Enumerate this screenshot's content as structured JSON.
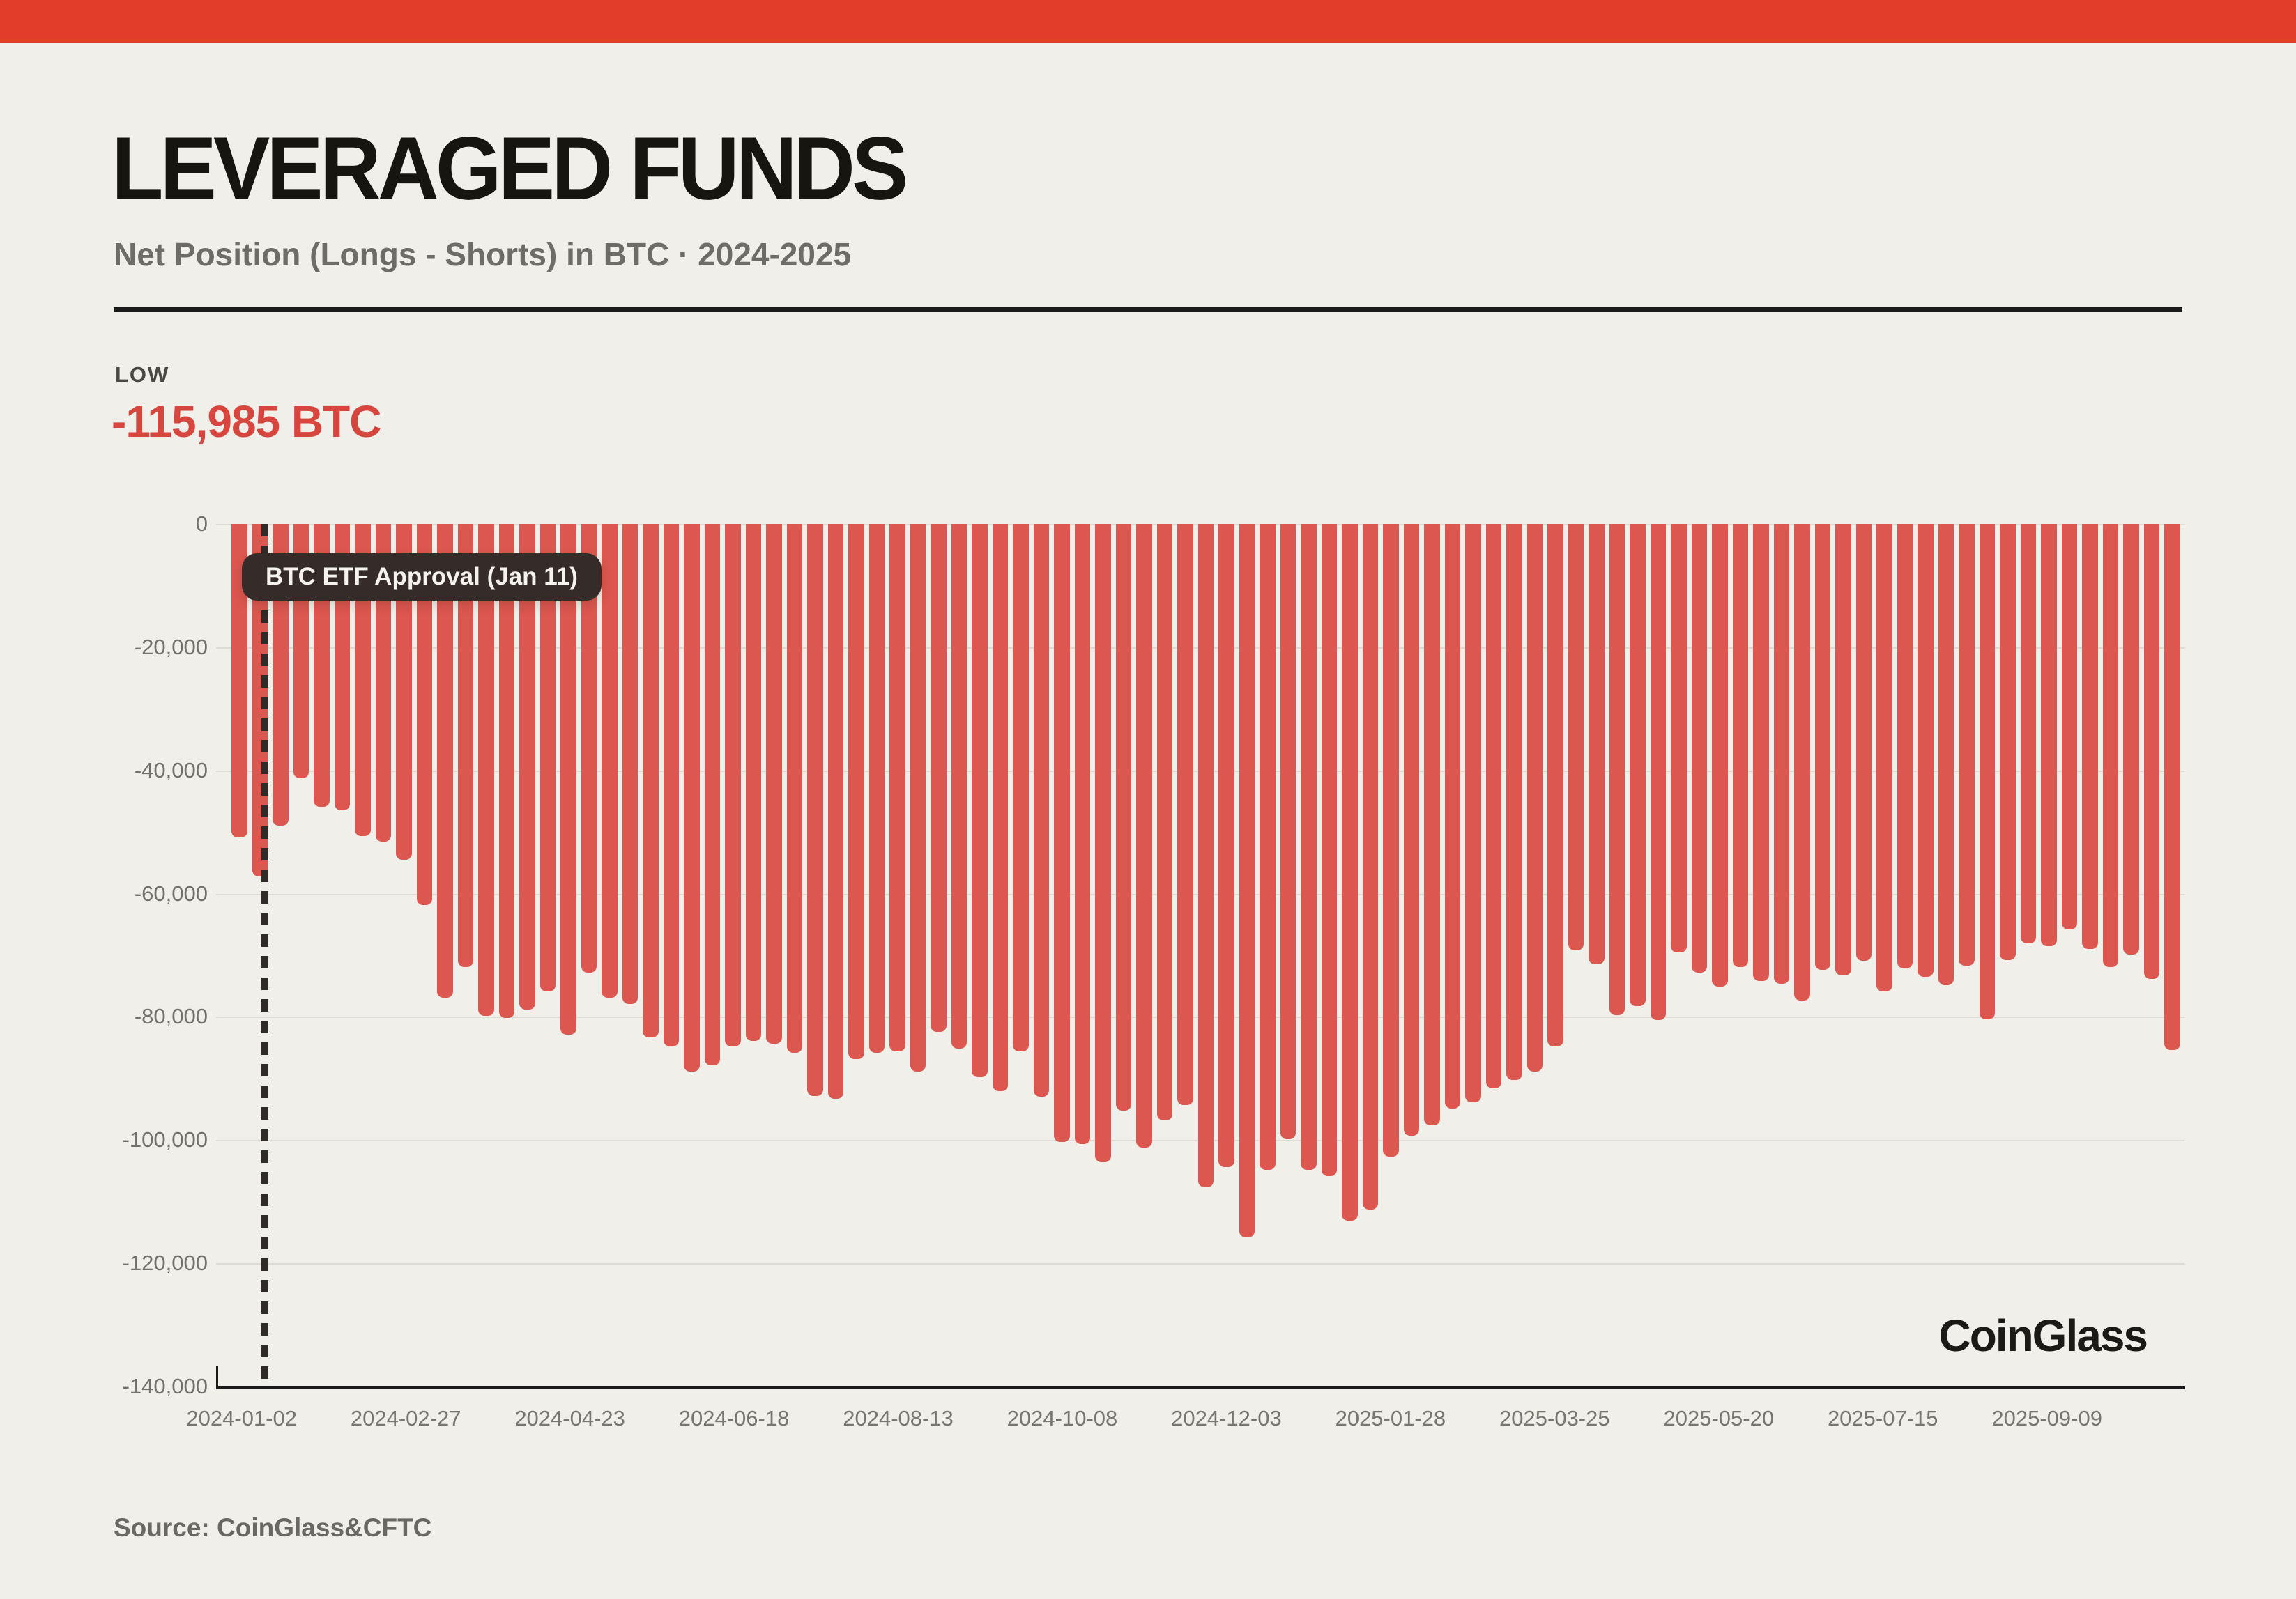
{
  "page": {
    "background_color": "#F0EFE9",
    "accent_bar_color": "#E23C2B"
  },
  "header": {
    "title": "LEVERAGED FUNDS",
    "subtitle": "Net Position (Longs - Shorts) in BTC · 2024-2025"
  },
  "stats": {
    "low_label": "LOW",
    "low_value": "-115,985 BTC",
    "low_color": "#D7463E"
  },
  "annotation": {
    "text": "BTC ETF Approval (Jan 11)"
  },
  "watermark": "CoinGlass",
  "footer": {
    "source": "Source: CoinGlass&CFTC"
  },
  "chart_data": {
    "type": "bar",
    "title": "Leveraged Funds Net Position (Longs - Shorts) in BTC, 2024-2025",
    "xlabel": "",
    "ylabel": "",
    "ylim": [
      -140000,
      0
    ],
    "grid": true,
    "bar_color": "#DC574F",
    "y_tick_labels": [
      "0",
      "-20,000",
      "-40,000",
      "-60,000",
      "-80,000",
      "-100,000",
      "-120,000",
      "-140,000"
    ],
    "x_tick_labels": [
      "2024-01-02",
      "2024-02-27",
      "2024-04-23",
      "2024-06-18",
      "2024-08-13",
      "2024-10-08",
      "2024-12-03",
      "2025-01-28",
      "2025-03-25",
      "2025-05-20",
      "2025-07-15",
      "2025-09-09"
    ],
    "x_tick_every": 8,
    "low": -115985,
    "values": [
      -51000,
      -57300,
      -49000,
      -41300,
      -46000,
      -46500,
      -50700,
      -51700,
      -54600,
      -62000,
      -77000,
      -72000,
      -80000,
      -80300,
      -79000,
      -76000,
      -83000,
      -73000,
      -77000,
      -78000,
      -83500,
      -85000,
      -89000,
      -88000,
      -85000,
      -84000,
      -84500,
      -86000,
      -93000,
      -93500,
      -87000,
      -86000,
      -85800,
      -89000,
      -82600,
      -85300,
      -89900,
      -92200,
      -85800,
      -93100,
      -100500,
      -100800,
      -103700,
      -95400,
      -101400,
      -97000,
      -94500,
      -107800,
      -104600,
      -115985,
      -105000,
      -100000,
      -105000,
      -106000,
      -113300,
      -111500,
      -102800,
      -99500,
      -97700,
      -95000,
      -94000,
      -91700,
      -90400,
      -89000,
      -85000,
      -69300,
      -71600,
      -79800,
      -78400,
      -80700,
      -69700,
      -72900,
      -75200,
      -72000,
      -74300,
      -74800,
      -77500,
      -72500,
      -73400,
      -71000,
      -76000,
      -72300,
      -73600,
      -75000,
      -71800,
      -80500,
      -70900,
      -68200,
      -68600,
      -65900,
      -69100,
      -72000,
      -70000,
      -74000,
      -85500
    ]
  }
}
